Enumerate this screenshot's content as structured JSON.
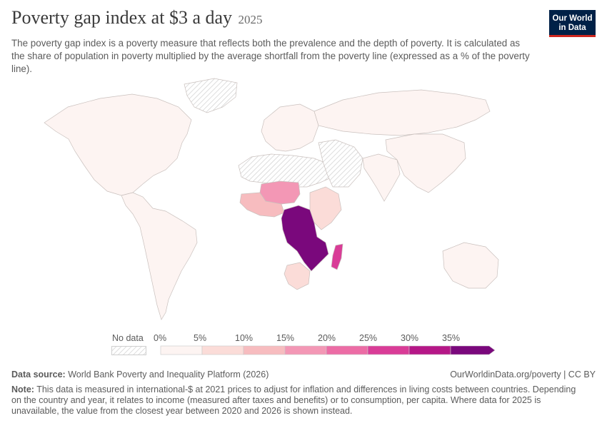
{
  "header": {
    "title": "Poverty gap index at $3 a day",
    "year": "2025",
    "subtitle": "The poverty gap index is a poverty measure that reflects both the prevalence and the depth of poverty. It is calculated as the share of population in poverty multiplied by the average shortfall from the poverty line (expressed as a % of the poverty line)."
  },
  "logo": {
    "line1": "Our World",
    "line2": "in Data"
  },
  "legend": {
    "no_data_label": "No data",
    "ticks": [
      "0%",
      "5%",
      "10%",
      "15%",
      "20%",
      "25%",
      "30%",
      "35%"
    ],
    "bins": [
      {
        "from": 0,
        "to": 5,
        "color": "#fdf4f2"
      },
      {
        "from": 5,
        "to": 10,
        "color": "#fbdcd8"
      },
      {
        "from": 10,
        "to": 15,
        "color": "#f7bcbf"
      },
      {
        "from": 15,
        "to": 20,
        "color": "#f397b5"
      },
      {
        "from": 20,
        "to": 25,
        "color": "#ec6ca5"
      },
      {
        "from": 25,
        "to": 30,
        "color": "#d93c97"
      },
      {
        "from": 30,
        "to": 35,
        "color": "#b51787"
      },
      {
        "from": 35,
        "to": null,
        "color": "#7a087c"
      }
    ]
  },
  "regions": [
    {
      "name": "Northern America",
      "level": 0
    },
    {
      "name": "Greenland",
      "level": null
    },
    {
      "name": "Latin America",
      "level": 0
    },
    {
      "name": "Europe",
      "level": 0
    },
    {
      "name": "Russia",
      "level": 0
    },
    {
      "name": "North Africa",
      "level": null
    },
    {
      "name": "Middle East",
      "level": null
    },
    {
      "name": "Sahel",
      "level": 3
    },
    {
      "name": "West Africa",
      "level": 2
    },
    {
      "name": "Central Africa",
      "level": 7
    },
    {
      "name": "East Africa",
      "level": 1
    },
    {
      "name": "Southern Africa",
      "level": 1
    },
    {
      "name": "Madagascar",
      "level": 5
    },
    {
      "name": "South Asia",
      "level": 0
    },
    {
      "name": "East Asia",
      "level": 0
    },
    {
      "name": "Australia",
      "level": 0
    }
  ],
  "footer": {
    "source_label": "Data source:",
    "source_text": "World Bank Poverty and Inequality Platform (2026)",
    "credit": "OurWorldinData.org/poverty | CC BY",
    "note_label": "Note:",
    "note_text": "This data is measured in international-$ at 2021 prices to adjust for inflation and differences in living costs between countries. Depending on the country and year, it relates to income (measured after taxes and benefits) or to consumption, per capita. Where data for 2025 is unavailable, the value from the closest year between 2020 and 2026 is shown instead."
  }
}
